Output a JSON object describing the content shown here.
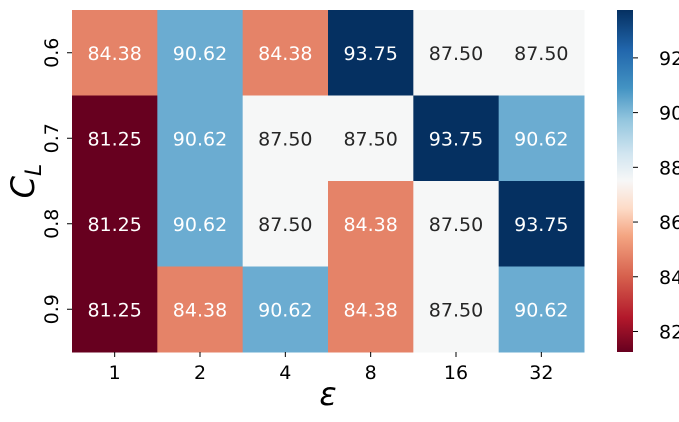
{
  "chart_data": {
    "type": "heatmap",
    "title": "",
    "xlabel": "ε",
    "ylabel_main": "C",
    "ylabel_sub": "L",
    "x_categories": [
      "1",
      "2",
      "4",
      "8",
      "16",
      "32"
    ],
    "y_categories": [
      "0.6",
      "0.7",
      "0.8",
      "0.9"
    ],
    "values": [
      [
        84.38,
        90.62,
        84.38,
        93.75,
        87.5,
        87.5
      ],
      [
        81.25,
        90.62,
        87.5,
        87.5,
        93.75,
        90.62
      ],
      [
        81.25,
        90.62,
        87.5,
        84.38,
        87.5,
        93.75
      ],
      [
        81.25,
        84.38,
        90.62,
        84.38,
        87.5,
        90.62
      ]
    ],
    "cell_labels": [
      [
        "84.38",
        "90.62",
        "84.38",
        "93.75",
        "87.50",
        "87.50"
      ],
      [
        "81.25",
        "90.62",
        "87.50",
        "87.50",
        "93.75",
        "90.62"
      ],
      [
        "81.25",
        "90.62",
        "87.50",
        "84.38",
        "87.50",
        "93.75"
      ],
      [
        "81.25",
        "84.38",
        "90.62",
        "84.38",
        "87.50",
        "90.62"
      ]
    ],
    "colormap": "RdBu",
    "vmin": 81.25,
    "vmax": 93.75,
    "colorbar_ticks": [
      82,
      84,
      86,
      88,
      90,
      92
    ],
    "colorbar_tick_labels": [
      "82",
      "84",
      "86",
      "88",
      "90",
      "92"
    ],
    "colors": {
      "81.25": "#67001f",
      "84.38": "#e58368",
      "87.50": "#f6f7f7",
      "90.62": "#6bacd1",
      "93.75": "#053061",
      "text_dark": "#262626",
      "text_light": "#ffffff"
    },
    "colorbar_stops": [
      {
        "v": 81.25,
        "c": "#67001f"
      },
      {
        "v": 82.5,
        "c": "#b2182b"
      },
      {
        "v": 84.0,
        "c": "#d6604d"
      },
      {
        "v": 85.5,
        "c": "#f4a582"
      },
      {
        "v": 86.5,
        "c": "#fddbc7"
      },
      {
        "v": 87.5,
        "c": "#f7f7f7"
      },
      {
        "v": 88.5,
        "c": "#d1e5f0"
      },
      {
        "v": 89.75,
        "c": "#92c5de"
      },
      {
        "v": 90.9,
        "c": "#4393c3"
      },
      {
        "v": 92.3,
        "c": "#2166ac"
      },
      {
        "v": 93.75,
        "c": "#053061"
      }
    ]
  }
}
